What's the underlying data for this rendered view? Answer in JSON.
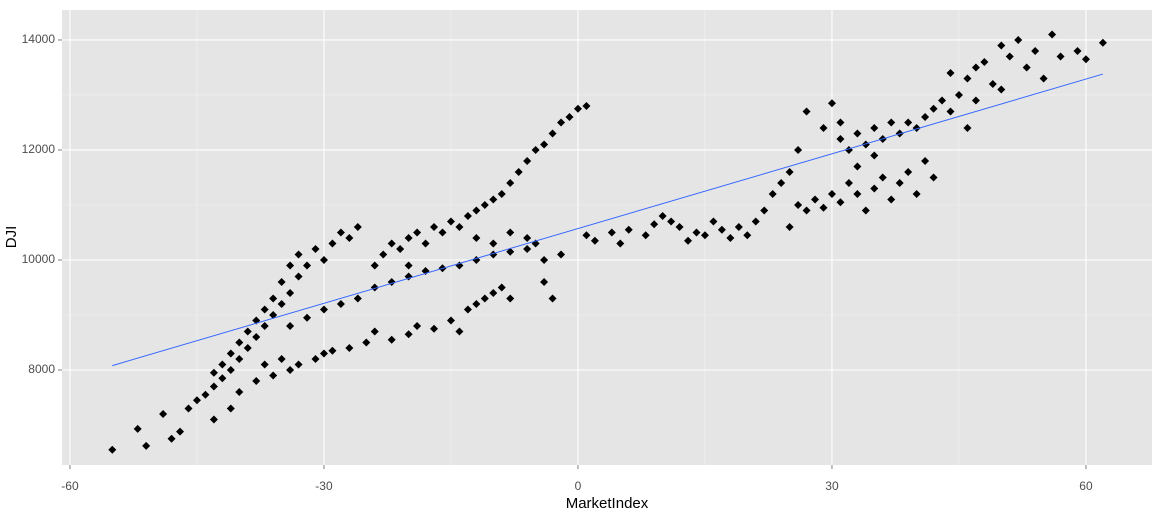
{
  "chart_data": {
    "type": "scatter",
    "x_label": "MarketIndex",
    "y_label": "DJI",
    "xlim": [
      -60.94,
      67.8
    ],
    "ylim": [
      6273,
      14545
    ],
    "xticks": [
      -60,
      -30,
      0,
      30,
      60
    ],
    "yticks": [
      8000,
      10000,
      12000,
      14000
    ],
    "grid": true,
    "series": [
      {
        "color": "#000000",
        "x": [
          -55,
          -52,
          -51,
          -49,
          -48,
          -47,
          -46,
          -45,
          -44,
          -43,
          -43,
          -42,
          -42,
          -41,
          -41,
          -40,
          -40,
          -39,
          -39,
          -38,
          -38,
          -37,
          -37,
          -36,
          -36,
          -35,
          -35,
          -34,
          -34,
          -33,
          -33,
          -32,
          -31,
          -30,
          -29,
          -28,
          -27,
          -26,
          -43,
          -41,
          -40,
          -38,
          -37,
          -36,
          -35,
          -34,
          -33,
          -31,
          -30,
          -29,
          -27,
          -25,
          -24,
          -22,
          -20,
          -19,
          -17,
          -15,
          -14,
          -13,
          -12,
          -11,
          -10,
          -9,
          -8,
          -34,
          -32,
          -30,
          -28,
          -26,
          -24,
          -22,
          -20,
          -18,
          -16,
          -14,
          -12,
          -10,
          -8,
          -6,
          -5,
          -4,
          -3,
          -4,
          -24,
          -23,
          -22,
          -21,
          -20,
          -19,
          -18,
          -17,
          -16,
          -15,
          -14,
          -13,
          -12,
          -11,
          -10,
          -9,
          -8,
          -7,
          -6,
          -5,
          -4,
          -3,
          -2,
          -1,
          0,
          1,
          -12,
          -10,
          -8,
          -6,
          -20,
          -2,
          1,
          2,
          4,
          5,
          6,
          8,
          9,
          10,
          11,
          12,
          13,
          14,
          15,
          16,
          17,
          18,
          19,
          20,
          21,
          22,
          23,
          24,
          25,
          26,
          27,
          28,
          29,
          30,
          31,
          32,
          33,
          34,
          35,
          36,
          37,
          38,
          39,
          40,
          41,
          42,
          26,
          27,
          29,
          30,
          31,
          32,
          33,
          34,
          35,
          36,
          37,
          38,
          39,
          40,
          41,
          42,
          43,
          44,
          45,
          44,
          46,
          47,
          48,
          49,
          50,
          51,
          52,
          53,
          54,
          55,
          56,
          57,
          59,
          60,
          62,
          47,
          50,
          46,
          33,
          35,
          31,
          25
        ],
        "values": [
          6550,
          6930,
          6620,
          7200,
          6750,
          6880,
          7300,
          7450,
          7550,
          7700,
          7950,
          7850,
          8100,
          8000,
          8300,
          8200,
          8500,
          8400,
          8700,
          8600,
          8900,
          8800,
          9100,
          9300,
          9000,
          9600,
          9200,
          9900,
          9400,
          10100,
          9700,
          9900,
          10200,
          10000,
          10300,
          10500,
          10400,
          10600,
          7100,
          7300,
          7600,
          7800,
          8100,
          7900,
          8200,
          8000,
          8100,
          8200,
          8300,
          8350,
          8400,
          8500,
          8700,
          8550,
          8650,
          8800,
          8750,
          8900,
          8700,
          9100,
          9200,
          9300,
          9400,
          9500,
          9300,
          8800,
          8950,
          9100,
          9200,
          9300,
          9500,
          9600,
          9700,
          9800,
          9850,
          9900,
          10000,
          10100,
          10150,
          10200,
          10300,
          10000,
          9300,
          9600,
          9900,
          10100,
          10300,
          10200,
          10400,
          10500,
          10300,
          10600,
          10500,
          10700,
          10600,
          10800,
          10900,
          11000,
          11100,
          11200,
          11400,
          11600,
          11800,
          12000,
          12100,
          12300,
          12500,
          12600,
          12750,
          12800,
          10400,
          10300,
          10500,
          10400,
          9900,
          10100,
          10450,
          10350,
          10500,
          10300,
          10550,
          10450,
          10650,
          10800,
          10700,
          10600,
          10350,
          10500,
          10450,
          10700,
          10550,
          10400,
          10600,
          10450,
          10700,
          10900,
          11200,
          11400,
          11600,
          11000,
          10900,
          11100,
          10950,
          11200,
          11050,
          11400,
          11200,
          10900,
          11300,
          11500,
          11100,
          11400,
          11600,
          11200,
          11800,
          11500,
          12000,
          12700,
          12400,
          12850,
          12200,
          12000,
          12300,
          12100,
          12400,
          12200,
          12500,
          12300,
          12500,
          12400,
          12600,
          12750,
          12900,
          12700,
          13000,
          13400,
          13300,
          13500,
          13600,
          13200,
          13900,
          13700,
          14000,
          13500,
          13800,
          13300,
          14100,
          13700,
          13800,
          13650,
          13950,
          12900,
          13100,
          12400,
          11700,
          11900,
          12500,
          10600
        ]
      }
    ],
    "trend": {
      "color": "#3366ff",
      "x": [
        -55,
        62
      ],
      "values": [
        8080,
        13380
      ]
    }
  }
}
